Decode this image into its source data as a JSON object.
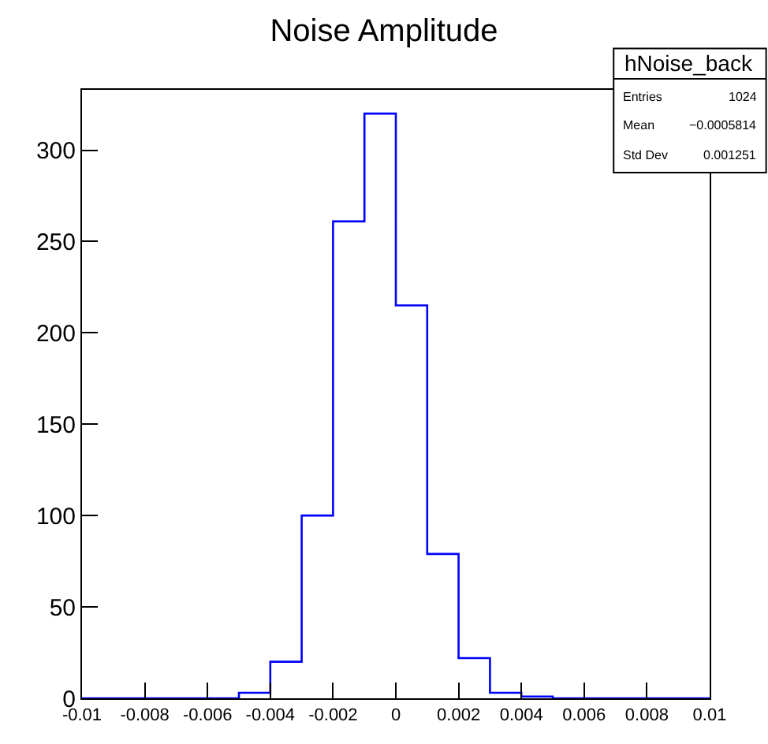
{
  "chart_data": {
    "type": "histogram",
    "title": "Noise Amplitude",
    "bins": [
      -0.01,
      -0.009,
      -0.008,
      -0.007,
      -0.006,
      -0.005,
      -0.004,
      -0.003,
      -0.002,
      -0.001,
      0,
      0.001,
      0.002,
      0.003,
      0.004,
      0.005,
      0.006,
      0.007,
      0.008,
      0.009,
      0.01
    ],
    "values": [
      0,
      0,
      0,
      0,
      0,
      3,
      20,
      100,
      261,
      320,
      215,
      79,
      22,
      3,
      1,
      0,
      0,
      0,
      0,
      0
    ],
    "color": "#0000ff",
    "xlim": [
      -0.01,
      0.01
    ],
    "xticks": [
      -0.01,
      -0.008,
      -0.006,
      -0.004,
      -0.002,
      0,
      0.002,
      0.004,
      0.006,
      0.008,
      0.01
    ],
    "ylim": [
      0,
      333
    ],
    "yticks": [
      0,
      50,
      100,
      150,
      200,
      250,
      300
    ],
    "grid": false,
    "annotations": [
      "hNoise_back",
      "Entries",
      "1024",
      "Mean",
      "−0.0005814",
      "Std Dev",
      "0.001251"
    ]
  }
}
